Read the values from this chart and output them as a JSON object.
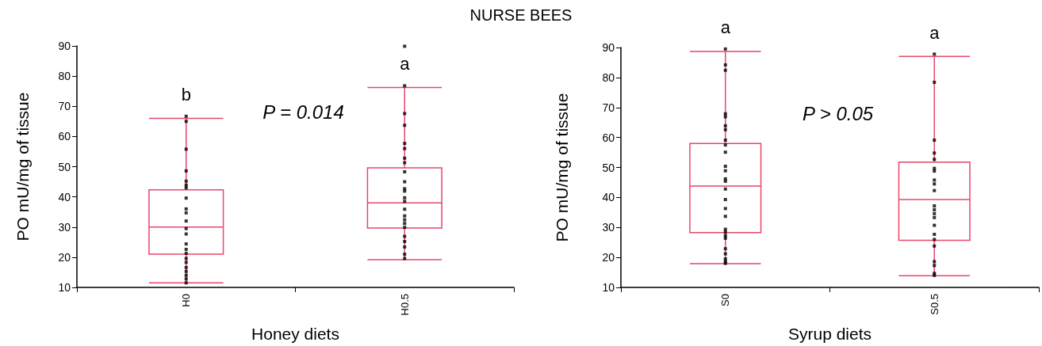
{
  "chart_data": [
    {
      "type": "box",
      "title": "NURSE BEES",
      "categories": [
        "H0",
        "H0.5"
      ],
      "xlabel": "Honey diets",
      "ylabel": "PO mU/mg of tissue",
      "ylim": [
        10,
        90
      ],
      "yticks": [
        10,
        20,
        30,
        40,
        50,
        60,
        70,
        80,
        90
      ],
      "series": [
        {
          "color": "#e8476a",
          "boxes": [
            {
              "low": 11.5,
              "q1": 21,
              "median": 30,
              "q3": 42.3,
              "high": 66
            },
            {
              "low": 19.2,
              "q1": 29.7,
              "median": 38,
              "q3": 49.6,
              "high": 76.2
            }
          ]
        },
        {
          "type": "scatter",
          "color": "#000000",
          "marker": "square",
          "x": [
            "H0",
            "H0",
            "H0",
            "H0",
            "H0",
            "H0",
            "H0",
            "H0",
            "H0",
            "H0",
            "H0",
            "H0",
            "H0",
            "H0",
            "H0",
            "H0",
            "H0",
            "H0",
            "H0",
            "H0",
            "H0",
            "H0",
            "H0",
            "H0",
            "H0.5",
            "H0.5",
            "H0.5",
            "H0.5",
            "H0.5",
            "H0.5",
            "H0.5",
            "H0.5",
            "H0.5",
            "H0.5",
            "H0.5",
            "H0.5",
            "H0.5",
            "H0.5",
            "H0.5",
            "H0.5",
            "H0.5",
            "H0.5",
            "H0.5",
            "H0.5",
            "H0.5",
            "H0.5",
            "H0.5",
            "H0.5"
          ],
          "values": [
            66.7,
            65,
            55.8,
            48.6,
            45.2,
            43.9,
            43,
            39.6,
            36,
            34.7,
            32,
            29.5,
            27.7,
            24.4,
            22.6,
            21.3,
            19.6,
            18.3,
            16.6,
            15.3,
            14,
            12.8,
            null,
            11.5,
            89.9,
            76.8,
            67.6,
            63.7,
            57.7,
            56,
            52.8,
            51.3,
            48.3,
            45,
            42.7,
            41.9,
            39.7,
            38.5,
            35.9,
            33.7,
            32.4,
            31.2,
            29.9,
            26.9,
            25.2,
            23.4,
            19.6,
            21
          ]
        }
      ],
      "annotations": [
        "b",
        "a",
        "P = 0.014"
      ]
    },
    {
      "type": "box",
      "categories": [
        "S0",
        "S0.5"
      ],
      "xlabel": "Syrup diets",
      "ylabel": "PO mU/mg of tissue",
      "ylim": [
        10,
        90
      ],
      "yticks": [
        10,
        20,
        30,
        40,
        50,
        60,
        70,
        80,
        90
      ],
      "series": [
        {
          "color": "#e8476a",
          "boxes": [
            {
              "low": 17.9,
              "q1": 28.3,
              "median": 43.8,
              "q3": 58,
              "high": 88.7
            },
            {
              "low": 13.9,
              "q1": 25.7,
              "median": 39.3,
              "q3": 51.8,
              "high": 87
            }
          ]
        },
        {
          "type": "scatter",
          "color": "#000000",
          "marker": "square",
          "x": [
            "S0",
            "S0",
            "S0",
            "S0",
            "S0",
            "S0",
            "S0",
            "S0",
            "S0",
            "S0",
            "S0",
            "S0",
            "S0",
            "S0",
            "S0",
            "S0",
            "S0",
            "S0",
            "S0",
            "S0",
            "S0",
            "S0",
            "S0",
            "S0",
            "S0",
            "S0",
            "S0",
            "S0.5",
            "S0.5",
            "S0.5",
            "S0.5",
            "S0.5",
            "S0.5",
            "S0.5",
            "S0.5",
            "S0.5",
            "S0.5",
            "S0.5",
            "S0.5",
            "S0.5",
            "S0.5",
            "S0.5",
            "S0.5",
            "S0.5",
            "S0.5",
            "S0.5",
            "S0.5",
            "S0.5",
            "S0.5"
          ],
          "values": [
            89.5,
            84.2,
            82.4,
            67.9,
            66.9,
            63.9,
            62.6,
            59.1,
            55.1,
            50.4,
            48.9,
            46.2,
            45.4,
            42.8,
            39.3,
            36.3,
            33.7,
            29.4,
            28.5,
            27.3,
            26.4,
            22.9,
            21.2,
            19.5,
            18.6,
            18,
            57.5,
            87.8,
            78.4,
            59.1,
            54.8,
            52.7,
            49.7,
            48.8,
            45.8,
            44.5,
            42.3,
            37.2,
            35.9,
            34.6,
            33.3,
            30.7,
            27.7,
            26,
            23.8,
            18.6,
            17.3,
            14.7,
            14
          ]
        }
      ],
      "annotations": [
        "a",
        "a",
        "P > 0.05"
      ]
    }
  ]
}
